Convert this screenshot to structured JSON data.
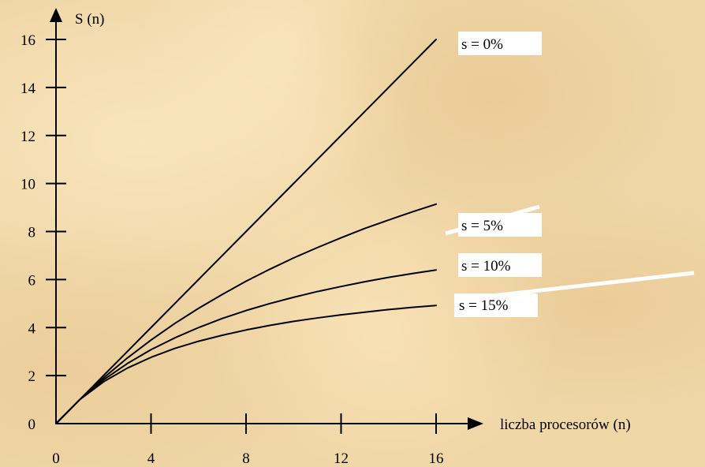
{
  "chart_data": {
    "type": "line",
    "xlabel": "liczba procesorów (n)",
    "ylabel": "S (n)",
    "xlim": [
      0,
      16
    ],
    "ylim": [
      0,
      16
    ],
    "x_ticks": [
      0,
      4,
      8,
      12,
      16
    ],
    "y_ticks": [
      0,
      2,
      4,
      6,
      8,
      10,
      12,
      14,
      16
    ],
    "x_tick_labels": [
      "0",
      "4",
      "8",
      "12",
      "16"
    ],
    "y_tick_labels": [
      "0",
      "2",
      "4",
      "6",
      "8",
      "10",
      "12",
      "14",
      "16"
    ],
    "grid": false,
    "legend_placement": "right of each line end",
    "series": [
      {
        "name": "s = 0%",
        "s": 0.0,
        "x": [
          0,
          1,
          2,
          3,
          4,
          5,
          6,
          7,
          8,
          9,
          10,
          11,
          12,
          13,
          14,
          15,
          16
        ],
        "y": [
          0,
          1,
          2,
          3,
          4,
          5,
          6,
          7,
          8,
          9,
          10,
          11,
          12,
          13,
          14,
          15,
          16
        ]
      },
      {
        "name": "s = 5%",
        "s": 0.05,
        "x": [
          0,
          1,
          2,
          3,
          4,
          5,
          6,
          7,
          8,
          9,
          10,
          11,
          12,
          13,
          14,
          15,
          16
        ],
        "y": [
          0,
          1.0,
          1.9,
          2.73,
          3.48,
          4.17,
          4.8,
          5.38,
          5.93,
          6.43,
          6.9,
          7.33,
          7.74,
          8.13,
          8.48,
          8.82,
          9.14
        ]
      },
      {
        "name": "s = 10%",
        "s": 0.1,
        "x": [
          0,
          1,
          2,
          3,
          4,
          5,
          6,
          7,
          8,
          9,
          10,
          11,
          12,
          13,
          14,
          15,
          16
        ],
        "y": [
          0,
          1.0,
          1.82,
          2.5,
          3.08,
          3.57,
          4.0,
          4.38,
          4.71,
          5.0,
          5.26,
          5.5,
          5.71,
          5.91,
          6.09,
          6.25,
          6.4
        ]
      },
      {
        "name": "s = 15%",
        "s": 0.15,
        "x": [
          0,
          1,
          2,
          3,
          4,
          5,
          6,
          7,
          8,
          9,
          10,
          11,
          12,
          13,
          14,
          15,
          16
        ],
        "y": [
          0,
          1.0,
          1.74,
          2.31,
          2.76,
          3.13,
          3.43,
          3.68,
          3.9,
          4.09,
          4.26,
          4.4,
          4.53,
          4.64,
          4.75,
          4.84,
          4.92
        ]
      }
    ]
  },
  "legend": {
    "s0": "s = 0%",
    "s5": "s = 5%",
    "s10": "s = 10%",
    "s15": "s = 15%"
  },
  "colors": {
    "line": "#000000",
    "label_box": "#ffffff"
  }
}
